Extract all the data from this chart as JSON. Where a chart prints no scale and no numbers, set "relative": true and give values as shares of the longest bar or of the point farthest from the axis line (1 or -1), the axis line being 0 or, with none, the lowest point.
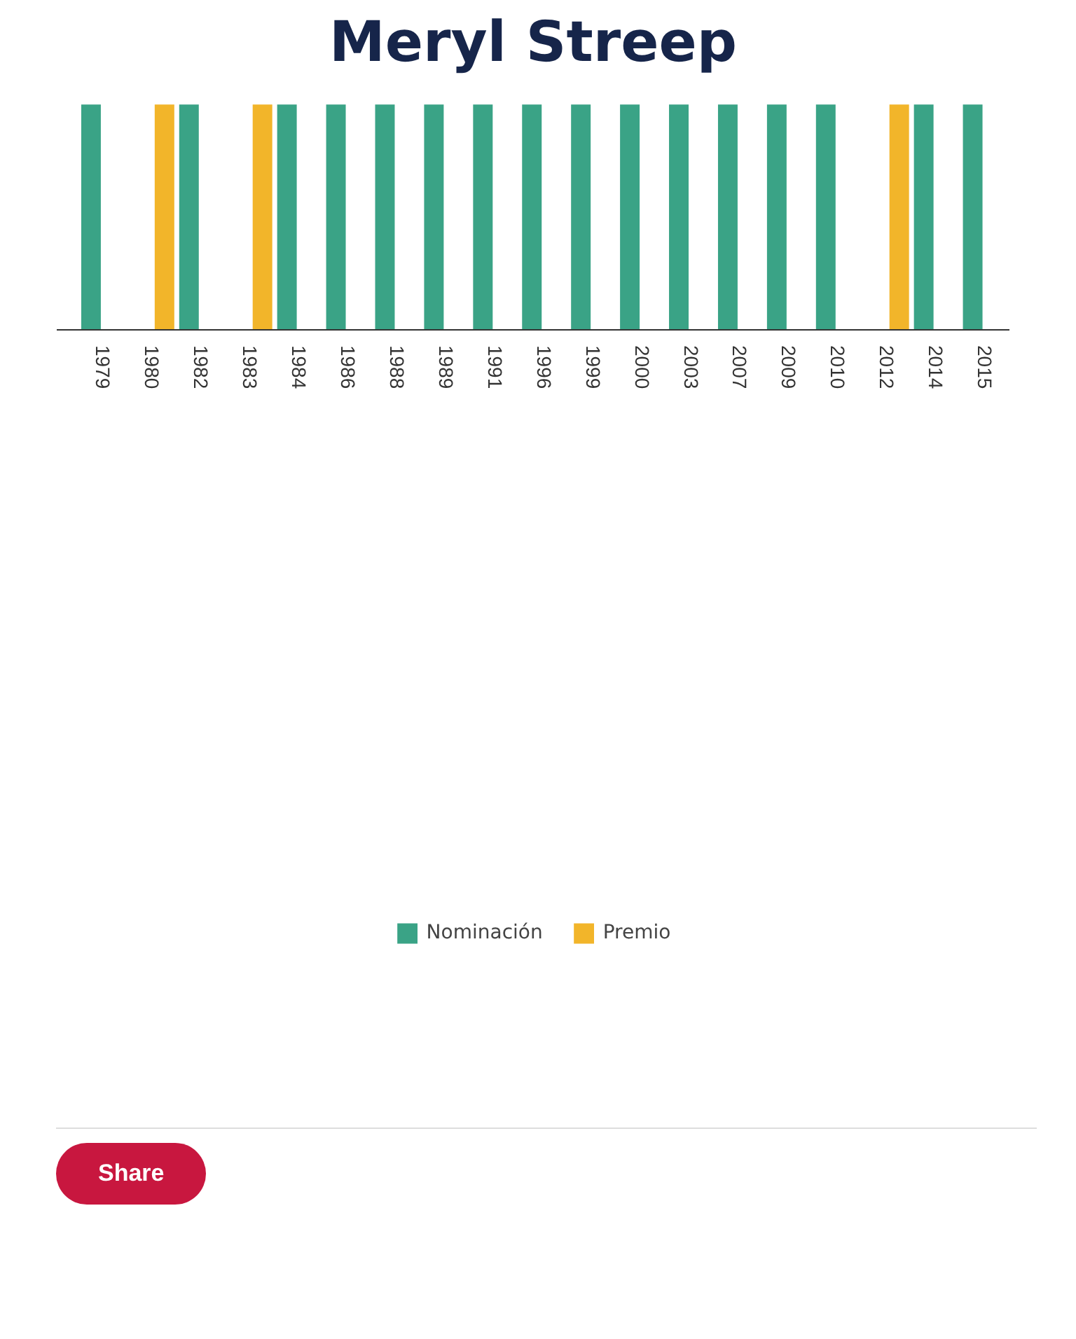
{
  "chart_data": {
    "type": "bar",
    "title": "Meryl Streep",
    "relative": true,
    "categories": [
      "1979",
      "1980",
      "1982",
      "1983",
      "1984",
      "1986",
      "1988",
      "1989",
      "1991",
      "1996",
      "1999",
      "2000",
      "2003",
      "2007",
      "2009",
      "2010",
      "2012",
      "2014",
      "2015"
    ],
    "series": [
      {
        "name": "Nominación",
        "color": "#3aa386",
        "values": [
          1,
          null,
          1,
          null,
          1,
          1,
          1,
          1,
          1,
          1,
          1,
          1,
          1,
          1,
          1,
          1,
          null,
          1,
          1
        ]
      },
      {
        "name": "Premio",
        "color": "#f2b52a",
        "values": [
          null,
          1,
          null,
          1,
          null,
          null,
          null,
          null,
          null,
          null,
          null,
          null,
          null,
          null,
          null,
          null,
          1,
          null,
          null
        ]
      }
    ],
    "legend": "bottom",
    "grid": false,
    "annotations": [
      "Share"
    ]
  }
}
